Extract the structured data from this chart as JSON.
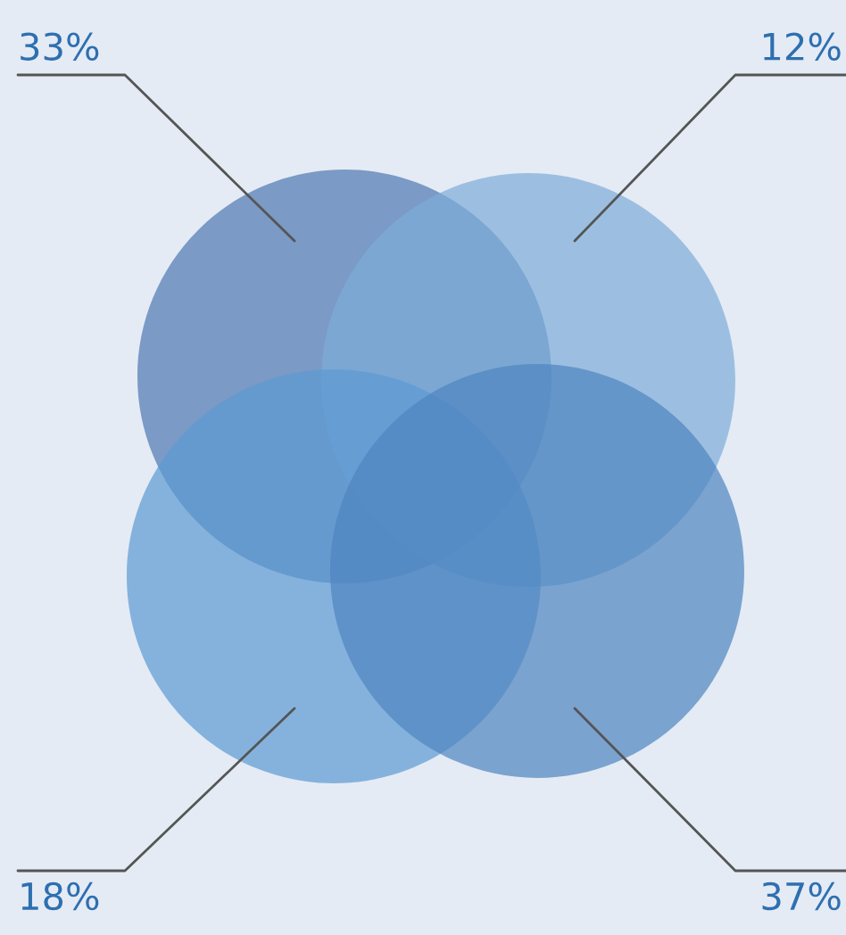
{
  "chart_data": {
    "type": "other",
    "values": [
      33,
      12,
      18,
      37
    ],
    "value_labels": [
      "33%",
      "12%",
      "18%",
      "37%"
    ],
    "colors": [
      "#4f78b0",
      "#7eadd9",
      "#5d9ad3",
      "#4f85bf"
    ]
  }
}
